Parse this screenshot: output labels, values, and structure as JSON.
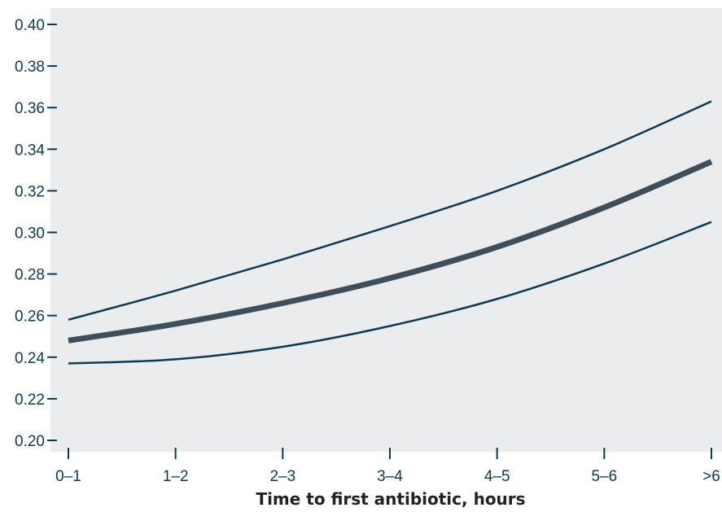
{
  "chart_data": {
    "type": "line",
    "title": "",
    "xlabel": "Time to first antibiotic, hours",
    "ylabel": "",
    "categories": [
      "0–1",
      "1–2",
      "2–3",
      "3–4",
      "4–5",
      "5–6",
      ">6"
    ],
    "ylim": [
      0.2,
      0.4
    ],
    "yticks": [
      "0.20",
      "0.22",
      "0.24",
      "0.26",
      "0.28",
      "0.30",
      "0.32",
      "0.34",
      "0.36",
      "0.38",
      "0.40"
    ],
    "grid": false,
    "series": [
      {
        "role": "upper-bound",
        "values": [
          0.258,
          0.272,
          0.287,
          0.303,
          0.32,
          0.34,
          0.363
        ],
        "color": "#0d3a52"
      },
      {
        "role": "estimate",
        "values": [
          0.248,
          0.256,
          0.266,
          0.278,
          0.293,
          0.312,
          0.334
        ],
        "color": "#3f4e58"
      },
      {
        "role": "lower-bound",
        "values": [
          0.237,
          0.239,
          0.245,
          0.255,
          0.268,
          0.285,
          0.305
        ],
        "color": "#0d3a52"
      }
    ],
    "colors": {
      "panel_background": "#ebecee",
      "axis": "#0d3a52",
      "text": "#222222"
    }
  }
}
